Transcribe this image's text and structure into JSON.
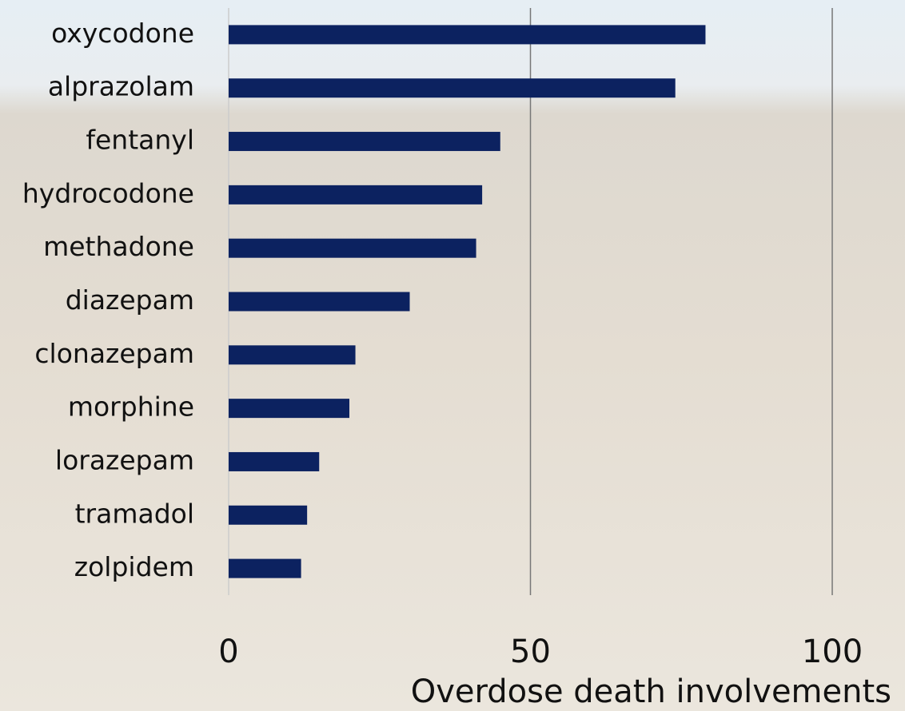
{
  "chart_data": {
    "type": "barh",
    "categories": [
      "oxycodone",
      "alprazolam",
      "fentanyl",
      "hydrocodone",
      "methadone",
      "diazepam",
      "clonazepam",
      "morphine",
      "lorazepam",
      "tramadol",
      "zolpidem"
    ],
    "values": [
      79,
      74,
      45,
      42,
      41,
      30,
      21,
      20,
      15,
      13,
      12
    ],
    "color": "#0c2260",
    "xlabel": "Overdose death involvements",
    "xlim": [
      0,
      100
    ],
    "xticks": [
      0,
      50,
      100
    ],
    "grid": true
  }
}
